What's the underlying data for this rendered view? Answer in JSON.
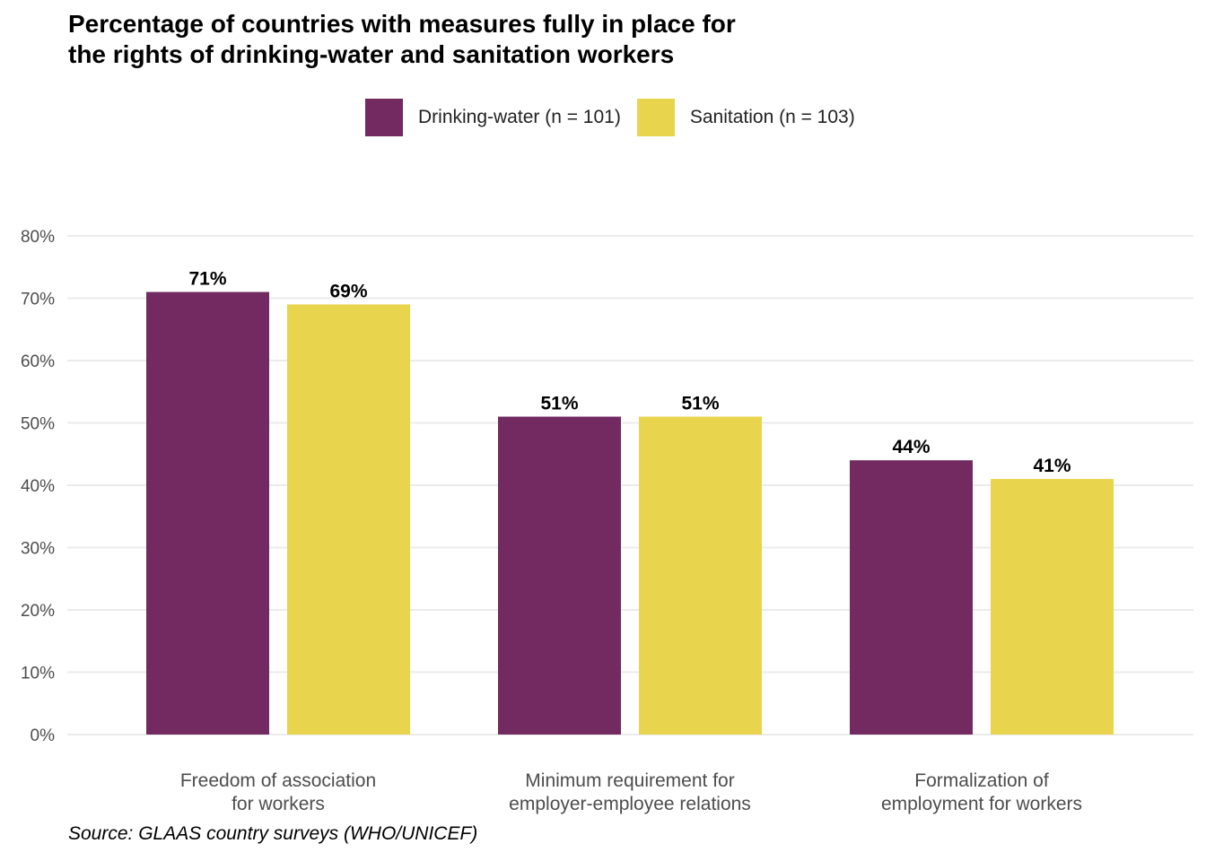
{
  "chart_data": {
    "type": "bar",
    "title": "Percentage of countries with measures fully in place for the rights of drinking-water and sanitation workers",
    "title_lines": [
      "Percentage of countries with measures fully in place for",
      "the rights of drinking-water and sanitation workers"
    ],
    "categories": [
      [
        "Freedom of association",
        "for workers"
      ],
      [
        "Minimum requirement for",
        "employer-employee relations"
      ],
      [
        "Formalization of",
        "employment for workers"
      ]
    ],
    "series": [
      {
        "name": "Drinking-water (n = 101)",
        "color": "#722A61",
        "values": [
          71,
          51,
          44
        ],
        "labels": [
          "71%",
          "51%",
          "44%"
        ]
      },
      {
        "name": "Sanitation (n = 103)",
        "color": "#E8D44D",
        "values": [
          69,
          51,
          41
        ],
        "labels": [
          "69%",
          "51%",
          "41%"
        ]
      }
    ],
    "ylim": [
      0,
      80
    ],
    "yticks": [
      "0%",
      "10%",
      "20%",
      "30%",
      "40%",
      "50%",
      "60%",
      "70%",
      "80%"
    ],
    "grid": true,
    "legend_position": "top",
    "xlabel": "",
    "ylabel": "",
    "source": "Source: GLAAS country surveys (WHO/UNICEF)"
  }
}
